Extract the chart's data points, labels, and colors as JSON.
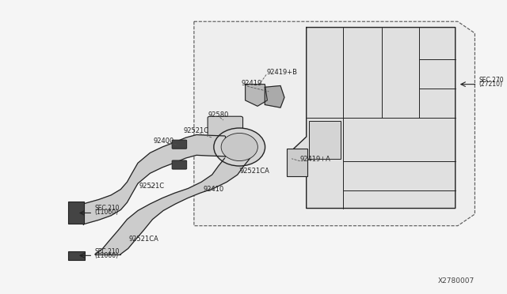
{
  "bg_color": "#f5f5f5",
  "line_color": "#222222",
  "part_number_bottom_right": "X2780007",
  "sec270_label": "SEC.270\n(27210)",
  "sec210_upper_label": "SEC.210\n(11060)",
  "sec210_lower_label": "SEC.210\n(11060)"
}
